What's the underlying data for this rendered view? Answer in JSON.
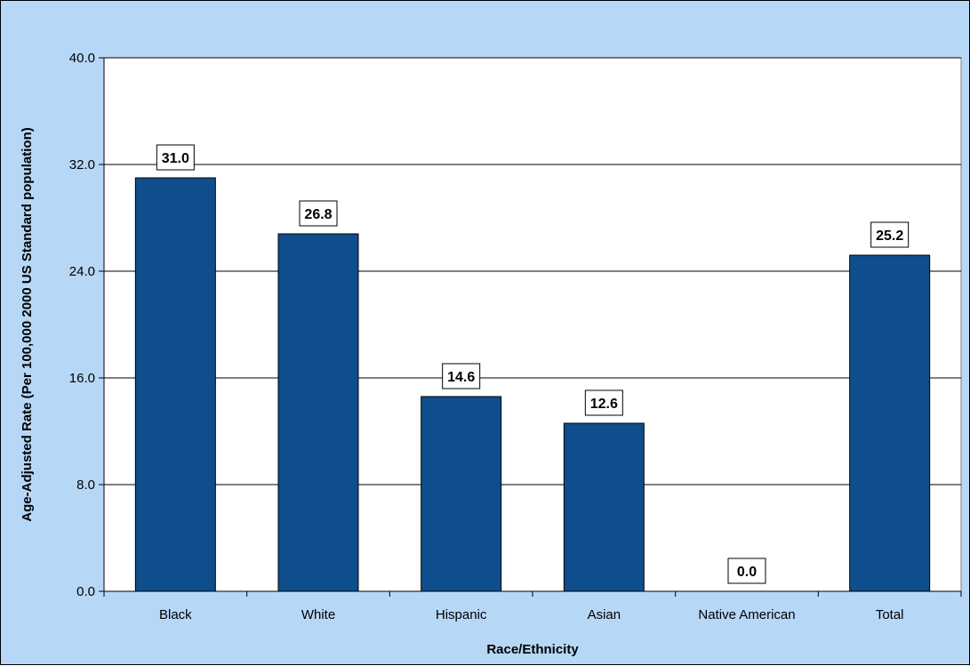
{
  "chart_data": {
    "type": "bar",
    "title": "",
    "xlabel": "Race/Ethnicity",
    "ylabel": "Age-Adjusted Rate (Per 100,000 2000 US Standard population)",
    "categories": [
      "Black",
      "White",
      "Hispanic",
      "Asian",
      "Native American",
      "Total"
    ],
    "values": [
      31.0,
      26.8,
      14.6,
      12.6,
      0.0,
      25.2
    ],
    "data_labels": [
      "31.0",
      "26.8",
      "14.6",
      "12.6",
      "0.0",
      "25.2"
    ],
    "ylim": [
      0,
      40
    ],
    "yticks": [
      "0.0",
      "8.0",
      "16.0",
      "24.0",
      "32.0",
      "40.0"
    ],
    "grid": true,
    "legend": "none",
    "colors": {
      "bar": "#0e4e8c",
      "plot_background": "#ffffff",
      "chart_background": "#b7d7f7",
      "gridline": "#000000"
    }
  }
}
